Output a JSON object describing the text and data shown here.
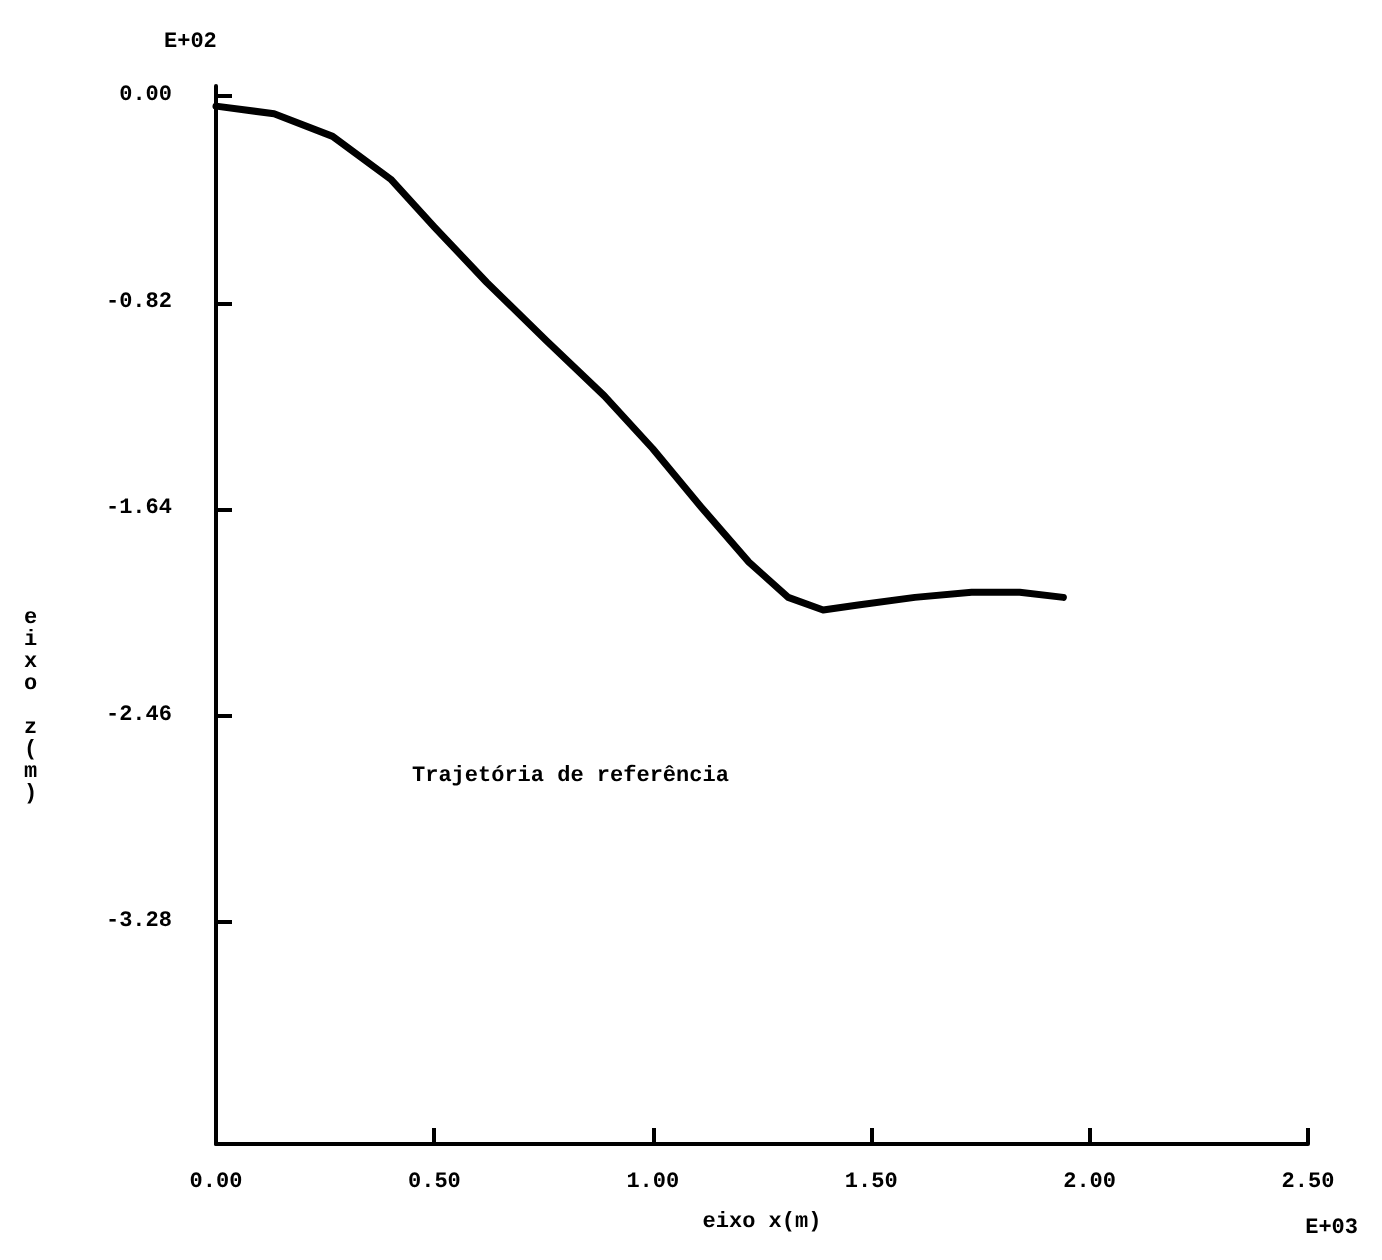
{
  "chart_data": {
    "type": "line",
    "xlabel": "eixo x(m)",
    "ylabel": "eixo z(m)",
    "annotations": [
      "E+02",
      "E+03",
      "Trajetória de referência"
    ],
    "x": [
      0,
      0.133,
      0.267,
      0.4,
      0.5,
      0.62,
      0.756,
      0.889,
      1.0,
      1.11,
      1.22,
      1.31,
      1.39,
      1.47,
      1.6,
      1.73,
      1.84,
      1.94
    ],
    "series": [
      {
        "color": "#000000",
        "values": [
          -0.04,
          -0.07,
          -0.16,
          -0.33,
          -0.52,
          -0.74,
          -0.97,
          -1.19,
          -1.4,
          -1.63,
          -1.85,
          -1.99,
          -2.04,
          -2.02,
          -1.99,
          -1.97,
          -1.97,
          -1.99
        ]
      }
    ],
    "xlim": [
      0,
      2.5
    ],
    "xticks": [
      {
        "value": 0,
        "label": "0.00"
      },
      {
        "value": 0.5,
        "label": "0.50"
      },
      {
        "value": 1,
        "label": "1.00"
      },
      {
        "value": 1.5,
        "label": "1.50"
      },
      {
        "value": 2,
        "label": "2.00"
      },
      {
        "value": 2.5,
        "label": "2.50"
      }
    ],
    "ylim": [
      -4.16,
      0.04
    ],
    "yticks": [
      {
        "value": 0,
        "label": "0.00"
      },
      {
        "value": -0.82,
        "label": "-0.82"
      },
      {
        "value": -1.64,
        "label": "-1.64"
      },
      {
        "value": -2.46,
        "label": "-2.46"
      },
      {
        "value": -3.28,
        "label": "-3.28"
      }
    ],
    "grid": false,
    "marker": "none",
    "line_style": "solid"
  }
}
